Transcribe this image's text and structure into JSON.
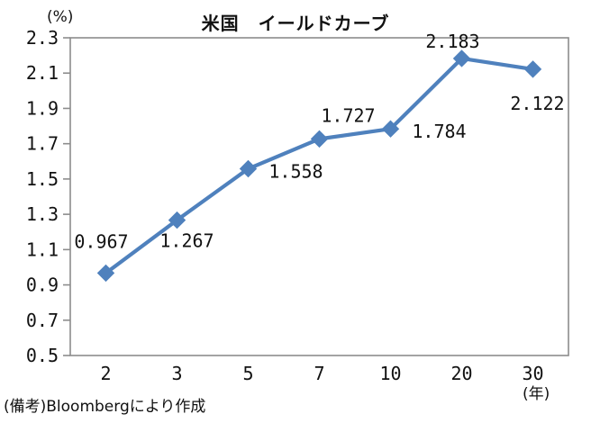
{
  "title": "米国　イールドカーブ",
  "y_axis_unit": "(%)",
  "x_axis_unit": "(年)",
  "footnote": "(備考)Bloombergにより作成",
  "chart_data": {
    "type": "line",
    "title": "米国　イールドカーブ",
    "categories": [
      "2",
      "3",
      "5",
      "7",
      "10",
      "20",
      "30"
    ],
    "series": [
      {
        "name": "米国イールドカーブ",
        "values": [
          0.967,
          1.267,
          1.558,
          1.727,
          1.784,
          2.183,
          2.122
        ]
      }
    ],
    "data_labels": [
      "0.967",
      "1.267",
      "1.558",
      "1.727",
      "1.784",
      "2.183",
      "2.122"
    ],
    "xlabel": "(年)",
    "ylabel": "(%)",
    "ylim": [
      0.5,
      2.3
    ],
    "ytick_step": 0.2,
    "yticks": [
      0.5,
      0.7,
      0.9,
      1.1,
      1.3,
      1.5,
      1.7,
      1.9,
      2.1,
      2.3
    ],
    "grid": false,
    "legend_position": "none",
    "marker": "diamond",
    "line_color": "#4F81BD",
    "axis_color": "#8C8C8C",
    "text_color": "#111111"
  }
}
